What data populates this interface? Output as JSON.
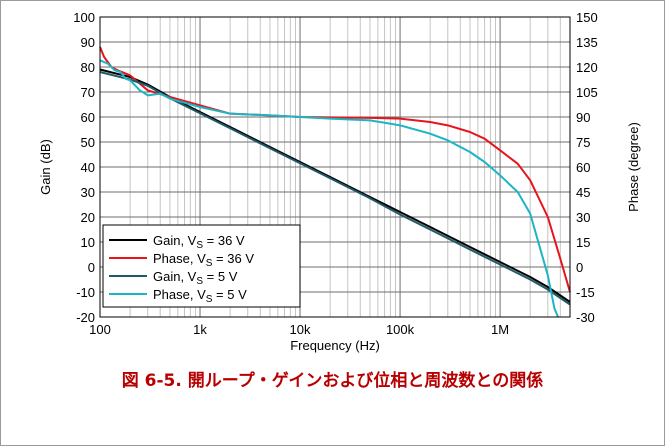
{
  "figure": {
    "caption": "図 6-5. 開ループ・ゲインおよび位相と周波数との関係"
  },
  "chart_data": {
    "type": "line",
    "xlabel": "Frequency (Hz)",
    "ylabel": "Gain (dB)",
    "y2label": "Phase (degree)",
    "xscale": "log",
    "xlim": [
      100,
      5000000
    ],
    "ylim": [
      -20,
      100
    ],
    "y2lim": [
      -30,
      150
    ],
    "grid": true,
    "legend_position": "bottom-left",
    "xticks": [
      {
        "value": 100,
        "label": "100"
      },
      {
        "value": 1000,
        "label": "1k"
      },
      {
        "value": 10000,
        "label": "10k"
      },
      {
        "value": 100000,
        "label": "100k"
      },
      {
        "value": 1000000,
        "label": "1M"
      }
    ],
    "yticks": [
      -20,
      -10,
      0,
      10,
      20,
      30,
      40,
      50,
      60,
      70,
      80,
      90,
      100
    ],
    "y2ticks": [
      -30,
      -15,
      0,
      15,
      30,
      45,
      60,
      75,
      90,
      105,
      120,
      135,
      150
    ],
    "series": [
      {
        "name": "Gain, VS = 36 V",
        "name_main": "Gain, V",
        "name_sub": "S",
        "name_rest": " = 36 V",
        "color": "#000000",
        "axis": "left",
        "points": [
          [
            100,
            79
          ],
          [
            200,
            76
          ],
          [
            300,
            73
          ],
          [
            500,
            68
          ],
          [
            1000,
            62
          ],
          [
            2000,
            56
          ],
          [
            5000,
            48
          ],
          [
            10000,
            42
          ],
          [
            20000,
            36
          ],
          [
            50000,
            28
          ],
          [
            100000,
            22
          ],
          [
            200000,
            16
          ],
          [
            500000,
            8
          ],
          [
            1000000,
            2
          ],
          [
            2000000,
            -4
          ],
          [
            3000000,
            -8
          ],
          [
            5000000,
            -14
          ]
        ]
      },
      {
        "name": "Phase, VS = 36 V",
        "name_main": "Phase, V",
        "name_sub": "S",
        "name_rest": " = 36 V",
        "color": "#e8141c",
        "axis": "right",
        "points": [
          [
            100,
            132
          ],
          [
            110,
            126
          ],
          [
            130,
            120
          ],
          [
            150,
            118
          ],
          [
            200,
            115
          ],
          [
            300,
            106
          ],
          [
            500,
            102
          ],
          [
            1000,
            97
          ],
          [
            2000,
            92
          ],
          [
            5000,
            91
          ],
          [
            10000,
            90
          ],
          [
            50000,
            89.5
          ],
          [
            100000,
            89
          ],
          [
            200000,
            87
          ],
          [
            300000,
            85
          ],
          [
            500000,
            81
          ],
          [
            700000,
            77
          ],
          [
            1000000,
            70
          ],
          [
            1500000,
            62
          ],
          [
            2000000,
            52
          ],
          [
            3000000,
            30
          ],
          [
            4000000,
            5
          ],
          [
            5000000,
            -15
          ]
        ]
      },
      {
        "name": "Gain, VS = 5 V",
        "name_main": "Gain, V",
        "name_sub": "S",
        "name_rest": " = 5 V",
        "color": "#1f5a68",
        "axis": "left",
        "points": [
          [
            100,
            78
          ],
          [
            200,
            75
          ],
          [
            300,
            72.5
          ],
          [
            500,
            67.5
          ],
          [
            1000,
            61.5
          ],
          [
            2000,
            55.5
          ],
          [
            5000,
            47.5
          ],
          [
            10000,
            41.5
          ],
          [
            20000,
            35.5
          ],
          [
            50000,
            27.5
          ],
          [
            100000,
            21
          ],
          [
            200000,
            15
          ],
          [
            500000,
            7
          ],
          [
            1000000,
            1
          ],
          [
            2000000,
            -5
          ],
          [
            3000000,
            -9
          ],
          [
            5000000,
            -15
          ]
        ]
      },
      {
        "name": "Phase, VS = 5 V",
        "name_main": "Phase, V",
        "name_sub": "S",
        "name_rest": " = 5 V",
        "color": "#1bb5c4",
        "axis": "right",
        "points": [
          [
            100,
            124
          ],
          [
            120,
            122
          ],
          [
            140,
            118
          ],
          [
            160,
            117
          ],
          [
            180,
            113
          ],
          [
            200,
            112
          ],
          [
            250,
            106
          ],
          [
            300,
            103
          ],
          [
            400,
            104
          ],
          [
            500,
            101
          ],
          [
            1000,
            96
          ],
          [
            2000,
            92
          ],
          [
            5000,
            91
          ],
          [
            10000,
            90
          ],
          [
            20000,
            89
          ],
          [
            50000,
            88
          ],
          [
            100000,
            85
          ],
          [
            200000,
            80
          ],
          [
            300000,
            76
          ],
          [
            500000,
            69
          ],
          [
            700000,
            63
          ],
          [
            1000000,
            55
          ],
          [
            1500000,
            45
          ],
          [
            2000000,
            32
          ],
          [
            3000000,
            -5
          ],
          [
            3500000,
            -25
          ],
          [
            3800000,
            -30
          ]
        ]
      }
    ]
  }
}
